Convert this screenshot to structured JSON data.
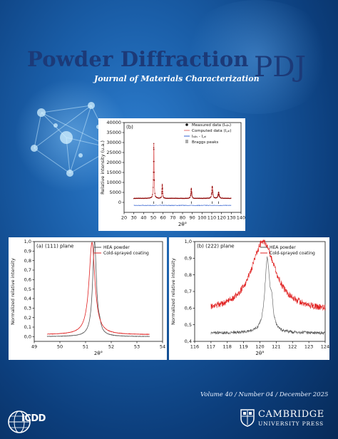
{
  "journal": {
    "title": "Powder Diffraction",
    "abbrev": "PDJ",
    "subtitle": "Journal of Materials Characterization",
    "issue_line": "Volume 40 / Number 04 / December 2025"
  },
  "publisher": {
    "name_line1": "CAMBRIDGE",
    "name_line2": "UNIVERSITY PRESS",
    "logo_icon": "cambridge-crest-icon"
  },
  "partner": {
    "name": "ICDD",
    "logo_icon": "icdd-globe-icon"
  },
  "colors": {
    "background": "#1a5ea8",
    "title": "#1c3a78",
    "measured": "#8b0000",
    "computed": "#e07070",
    "difference": "#3060d0",
    "hea": "#555555",
    "coating": "#e02020"
  },
  "chart_data": [
    {
      "type": "scatter",
      "panel_label": "(b)",
      "xlabel": "2θ°",
      "ylabel": "Relative intensity (u.a.)",
      "xlim": [
        20,
        140
      ],
      "ylim": [
        -5000,
        40000
      ],
      "xticks": [
        "20",
        "30",
        "40",
        "50",
        "60",
        "70",
        "80",
        "90",
        "100",
        "110",
        "120",
        "130",
        "140"
      ],
      "yticks": [
        "0",
        "5000",
        "10000",
        "15000",
        "20000",
        "25000",
        "30000",
        "35000",
        "40000"
      ],
      "legend": [
        "Measured data (I_obs)",
        "Computed data (I_cal)",
        "I_obs - I_cal",
        "Braggs peaks"
      ],
      "legend_display": [
        "Measured data (Iₒᵦₛ)",
        "Computed data (I꜀ₐₗ)",
        "Iₒᵦₛ - I꜀ₐₗ",
        "Braggs peaks"
      ],
      "baseline": 2000,
      "peaks": [
        {
          "x": 50.5,
          "y": 29500,
          "w": 0.35
        },
        {
          "x": 59.2,
          "y": 9000,
          "w": 0.35
        },
        {
          "x": 89.0,
          "y": 7000,
          "w": 0.45
        },
        {
          "x": 110.5,
          "y": 8000,
          "w": 0.55
        },
        {
          "x": 117.0,
          "y": 5000,
          "w": 0.6
        }
      ],
      "bragg_positions": [
        50.5,
        59.2,
        89.0,
        110.5,
        117.0
      ],
      "difference_level": -1500,
      "data_xrange": [
        30,
        130
      ]
    },
    {
      "type": "line",
      "panel_label": "(a) (111) plane",
      "xlabel": "2θ°",
      "ylabel": "Normalized relative intensity",
      "xlim": [
        49,
        54
      ],
      "ylim": [
        -0.05,
        1.0
      ],
      "xticks": [
        "49",
        "50",
        "51",
        "52",
        "53",
        "54"
      ],
      "yticks": [
        "0,0",
        "0,1",
        "0,2",
        "0,3",
        "0,4",
        "0,5",
        "0,6",
        "0,7",
        "0,8",
        "0,9",
        "1,0"
      ],
      "series": [
        {
          "name": "HEA powder",
          "center": 51.35,
          "width": 0.09,
          "base": 0.0,
          "peak": 1.0
        },
        {
          "name": "Cold-sprayed coating",
          "center": 51.25,
          "width": 0.14,
          "base": 0.02,
          "peak": 0.99
        }
      ],
      "data_xrange": [
        49.5,
        53.5
      ]
    },
    {
      "type": "line",
      "panel_label": "(b) (222) plane",
      "xlabel": "2θ°",
      "ylabel": "Normalized relative intensity",
      "xlim": [
        116,
        124
      ],
      "ylim": [
        0.4,
        1.0
      ],
      "xticks": [
        "116",
        "117",
        "118",
        "119",
        "120",
        "121",
        "122",
        "123",
        "124"
      ],
      "yticks": [
        "0,4",
        "0,5",
        "0,6",
        "0,7",
        "0,8",
        "0,9",
        "1,0"
      ],
      "series": [
        {
          "name": "HEA powder",
          "center": 120.45,
          "width": 0.18,
          "base": 0.45,
          "peak": 0.89
        },
        {
          "name": "Cold-sprayed coating",
          "center": 120.2,
          "width": 0.9,
          "base": 0.58,
          "peak": 1.0
        }
      ],
      "data_xrange": [
        117,
        124
      ]
    }
  ]
}
